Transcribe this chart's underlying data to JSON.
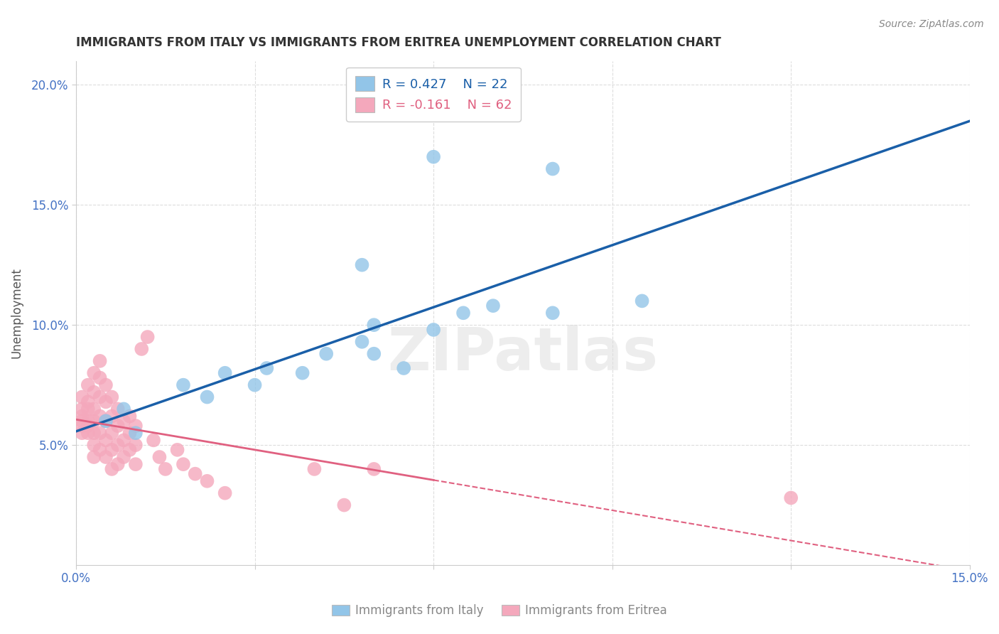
{
  "title": "IMMIGRANTS FROM ITALY VS IMMIGRANTS FROM ERITREA UNEMPLOYMENT CORRELATION CHART",
  "source": "Source: ZipAtlas.com",
  "ylabel": "Unemployment",
  "xlim": [
    0.0,
    0.15
  ],
  "ylim": [
    0.0,
    0.21
  ],
  "xticks": [
    0.0,
    0.03,
    0.06,
    0.09,
    0.12,
    0.15
  ],
  "xticklabels": [
    "0.0%",
    "",
    "",
    "",
    "",
    "15.0%"
  ],
  "yticks": [
    0.05,
    0.1,
    0.15,
    0.2
  ],
  "yticklabels": [
    "5.0%",
    "10.0%",
    "15.0%",
    "20.0%"
  ],
  "italy_R": 0.427,
  "italy_N": 22,
  "eritrea_R": -0.161,
  "eritrea_N": 62,
  "italy_color": "#92C5E8",
  "eritrea_color": "#F4A8BC",
  "italy_line_color": "#1A5FA8",
  "eritrea_line_color": "#E06080",
  "background_color": "#FFFFFF",
  "grid_color": "#DDDDDD",
  "watermark": "ZIPatlas",
  "italy_points": [
    [
      0.005,
      0.06
    ],
    [
      0.008,
      0.065
    ],
    [
      0.01,
      0.055
    ],
    [
      0.018,
      0.075
    ],
    [
      0.022,
      0.07
    ],
    [
      0.025,
      0.08
    ],
    [
      0.03,
      0.075
    ],
    [
      0.032,
      0.082
    ],
    [
      0.038,
      0.08
    ],
    [
      0.042,
      0.088
    ],
    [
      0.048,
      0.093
    ],
    [
      0.05,
      0.088
    ],
    [
      0.05,
      0.1
    ],
    [
      0.055,
      0.082
    ],
    [
      0.06,
      0.098
    ],
    [
      0.065,
      0.105
    ],
    [
      0.07,
      0.108
    ],
    [
      0.08,
      0.105
    ],
    [
      0.095,
      0.11
    ],
    [
      0.048,
      0.125
    ],
    [
      0.06,
      0.17
    ],
    [
      0.08,
      0.165
    ]
  ],
  "eritrea_points": [
    [
      0.001,
      0.062
    ],
    [
      0.001,
      0.058
    ],
    [
      0.001,
      0.065
    ],
    [
      0.001,
      0.07
    ],
    [
      0.001,
      0.055
    ],
    [
      0.001,
      0.06
    ],
    [
      0.002,
      0.075
    ],
    [
      0.002,
      0.068
    ],
    [
      0.002,
      0.06
    ],
    [
      0.002,
      0.055
    ],
    [
      0.002,
      0.065
    ],
    [
      0.002,
      0.058
    ],
    [
      0.003,
      0.08
    ],
    [
      0.003,
      0.072
    ],
    [
      0.003,
      0.065
    ],
    [
      0.003,
      0.06
    ],
    [
      0.003,
      0.055
    ],
    [
      0.003,
      0.05
    ],
    [
      0.003,
      0.045
    ],
    [
      0.004,
      0.085
    ],
    [
      0.004,
      0.078
    ],
    [
      0.004,
      0.07
    ],
    [
      0.004,
      0.062
    ],
    [
      0.004,
      0.055
    ],
    [
      0.004,
      0.048
    ],
    [
      0.005,
      0.075
    ],
    [
      0.005,
      0.068
    ],
    [
      0.005,
      0.06
    ],
    [
      0.005,
      0.052
    ],
    [
      0.005,
      0.045
    ],
    [
      0.006,
      0.07
    ],
    [
      0.006,
      0.062
    ],
    [
      0.006,
      0.055
    ],
    [
      0.006,
      0.048
    ],
    [
      0.006,
      0.04
    ],
    [
      0.007,
      0.065
    ],
    [
      0.007,
      0.058
    ],
    [
      0.007,
      0.05
    ],
    [
      0.007,
      0.042
    ],
    [
      0.008,
      0.06
    ],
    [
      0.008,
      0.052
    ],
    [
      0.008,
      0.045
    ],
    [
      0.009,
      0.062
    ],
    [
      0.009,
      0.055
    ],
    [
      0.009,
      0.048
    ],
    [
      0.01,
      0.058
    ],
    [
      0.01,
      0.05
    ],
    [
      0.01,
      0.042
    ],
    [
      0.011,
      0.09
    ],
    [
      0.012,
      0.095
    ],
    [
      0.013,
      0.052
    ],
    [
      0.014,
      0.045
    ],
    [
      0.015,
      0.04
    ],
    [
      0.017,
      0.048
    ],
    [
      0.018,
      0.042
    ],
    [
      0.02,
      0.038
    ],
    [
      0.022,
      0.035
    ],
    [
      0.025,
      0.03
    ],
    [
      0.04,
      0.04
    ],
    [
      0.045,
      0.025
    ],
    [
      0.05,
      0.04
    ],
    [
      0.12,
      0.028
    ]
  ]
}
